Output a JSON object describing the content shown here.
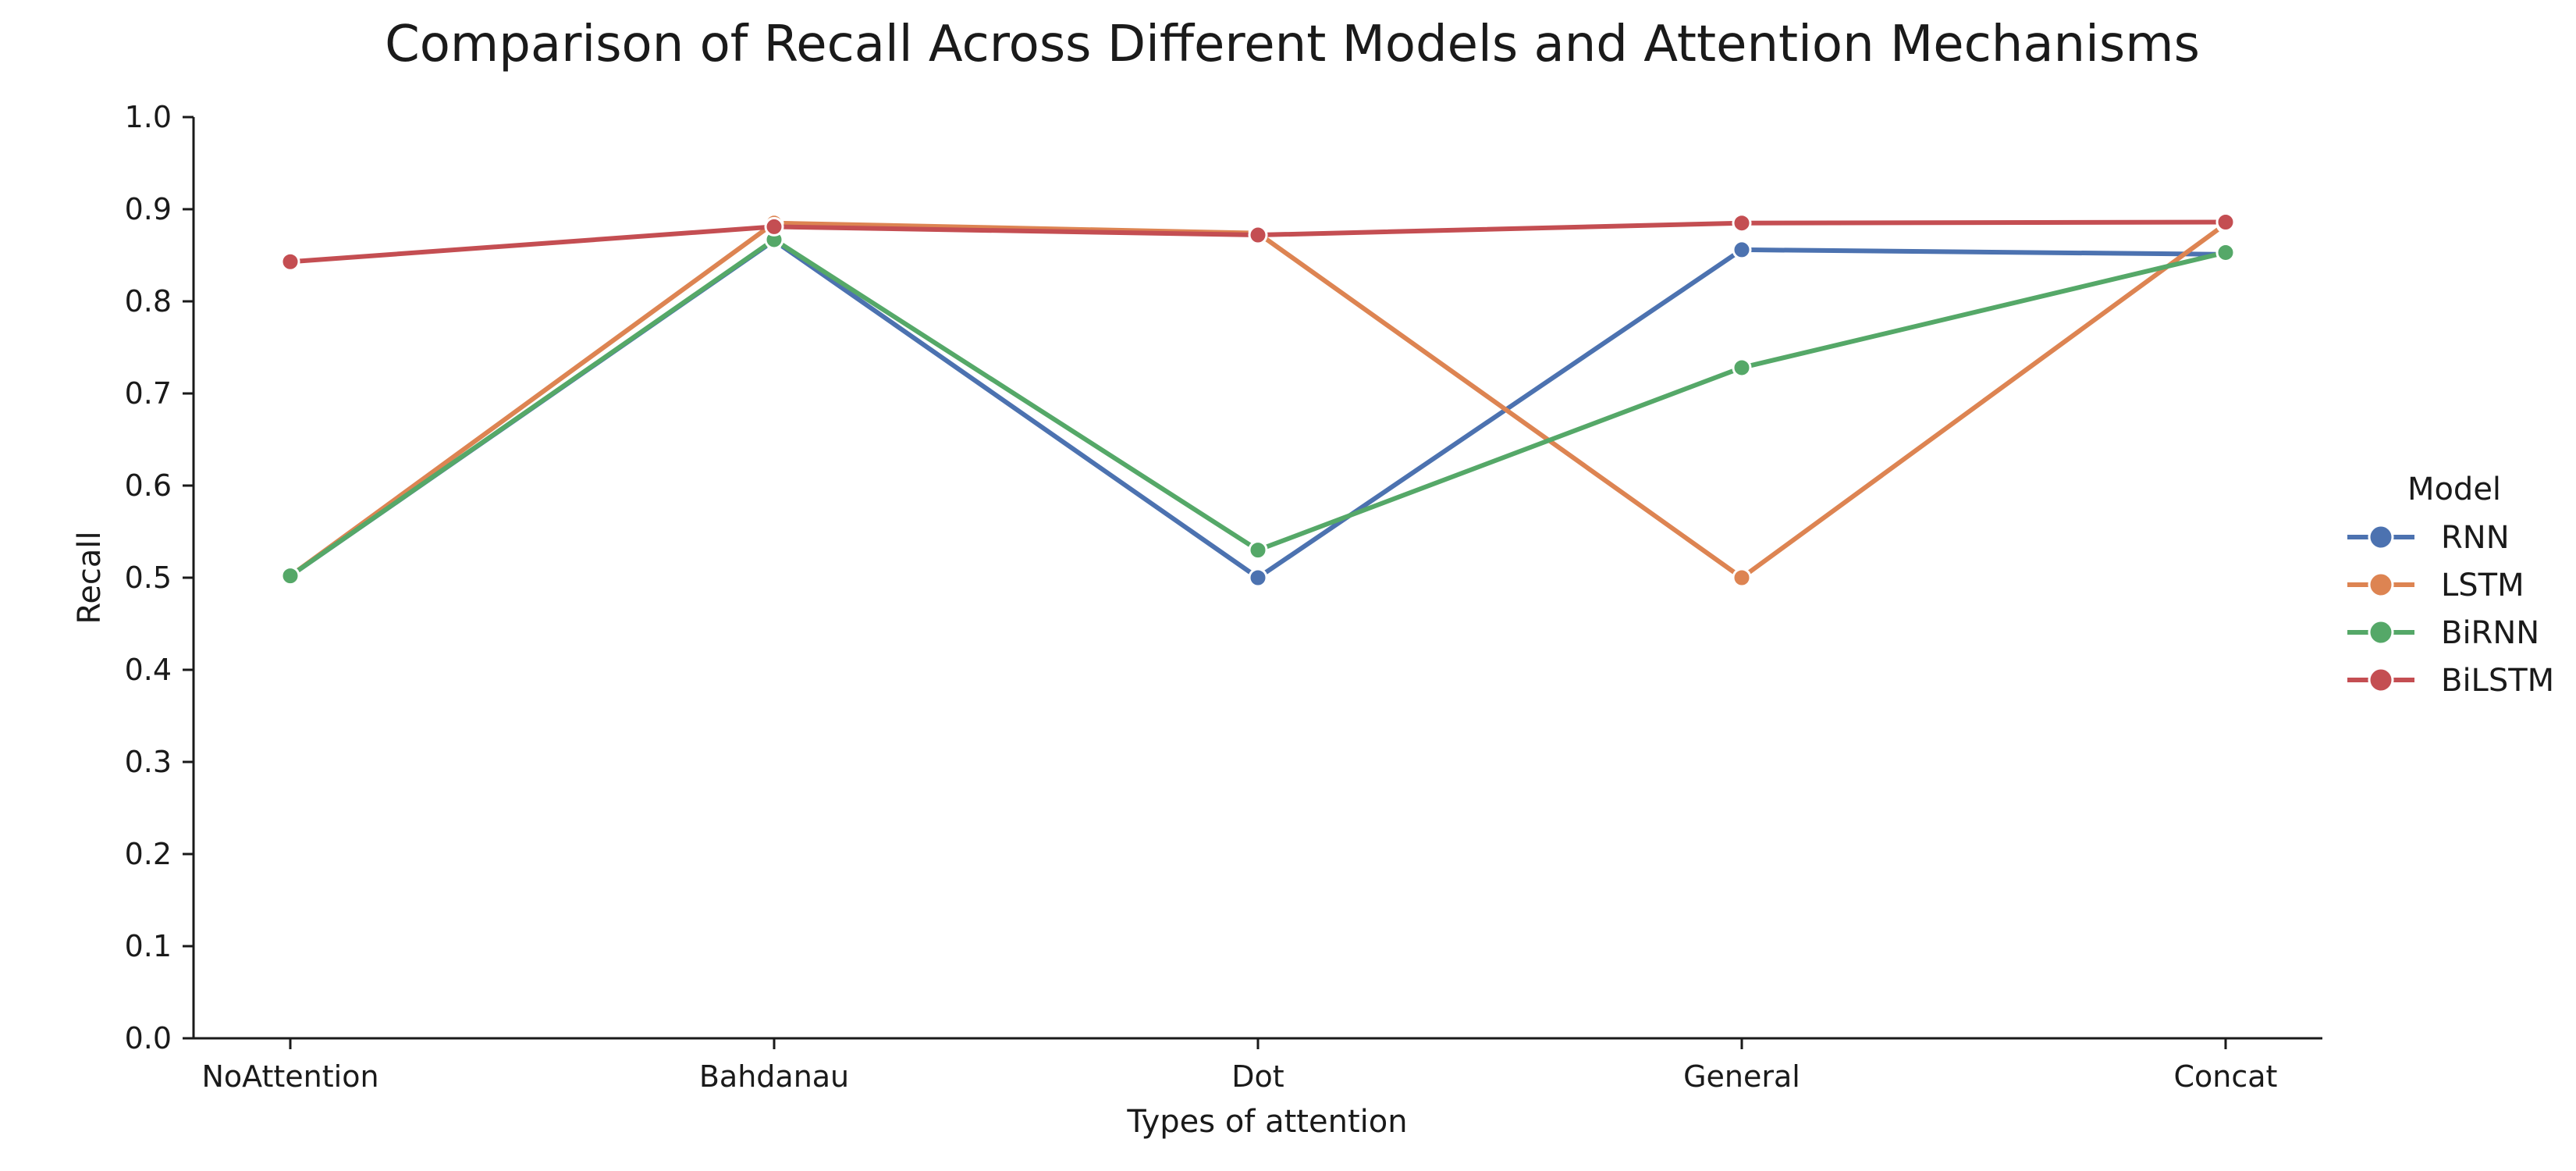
{
  "chart_data": {
    "type": "line",
    "title": "Comparison of Recall Across Different Models and Attention Mechanisms",
    "xlabel": "Types of attention",
    "ylabel": "Recall",
    "categories": [
      "NoAttention",
      "Bahdanau",
      "Dot",
      "General",
      "Concat"
    ],
    "ylim": [
      0.0,
      1.0
    ],
    "yticks": [
      "0.0",
      "0.1",
      "0.2",
      "0.3",
      "0.4",
      "0.5",
      "0.6",
      "0.7",
      "0.8",
      "0.9",
      "1.0"
    ],
    "grid": false,
    "legend": {
      "title": "Model",
      "placement": "right"
    },
    "series": [
      {
        "name": "RNN",
        "color": "#4c72b0",
        "values": [
          0.502,
          0.866,
          0.5,
          0.856,
          0.851
        ]
      },
      {
        "name": "LSTM",
        "color": "#dd8452",
        "values": [
          0.502,
          0.885,
          0.874,
          0.5,
          0.884
        ]
      },
      {
        "name": "BiRNN",
        "color": "#55a868",
        "values": [
          0.502,
          0.867,
          0.53,
          0.728,
          0.853
        ]
      },
      {
        "name": "BiLSTM",
        "color": "#c44e52",
        "values": [
          0.843,
          0.881,
          0.872,
          0.885,
          0.886
        ]
      }
    ]
  }
}
